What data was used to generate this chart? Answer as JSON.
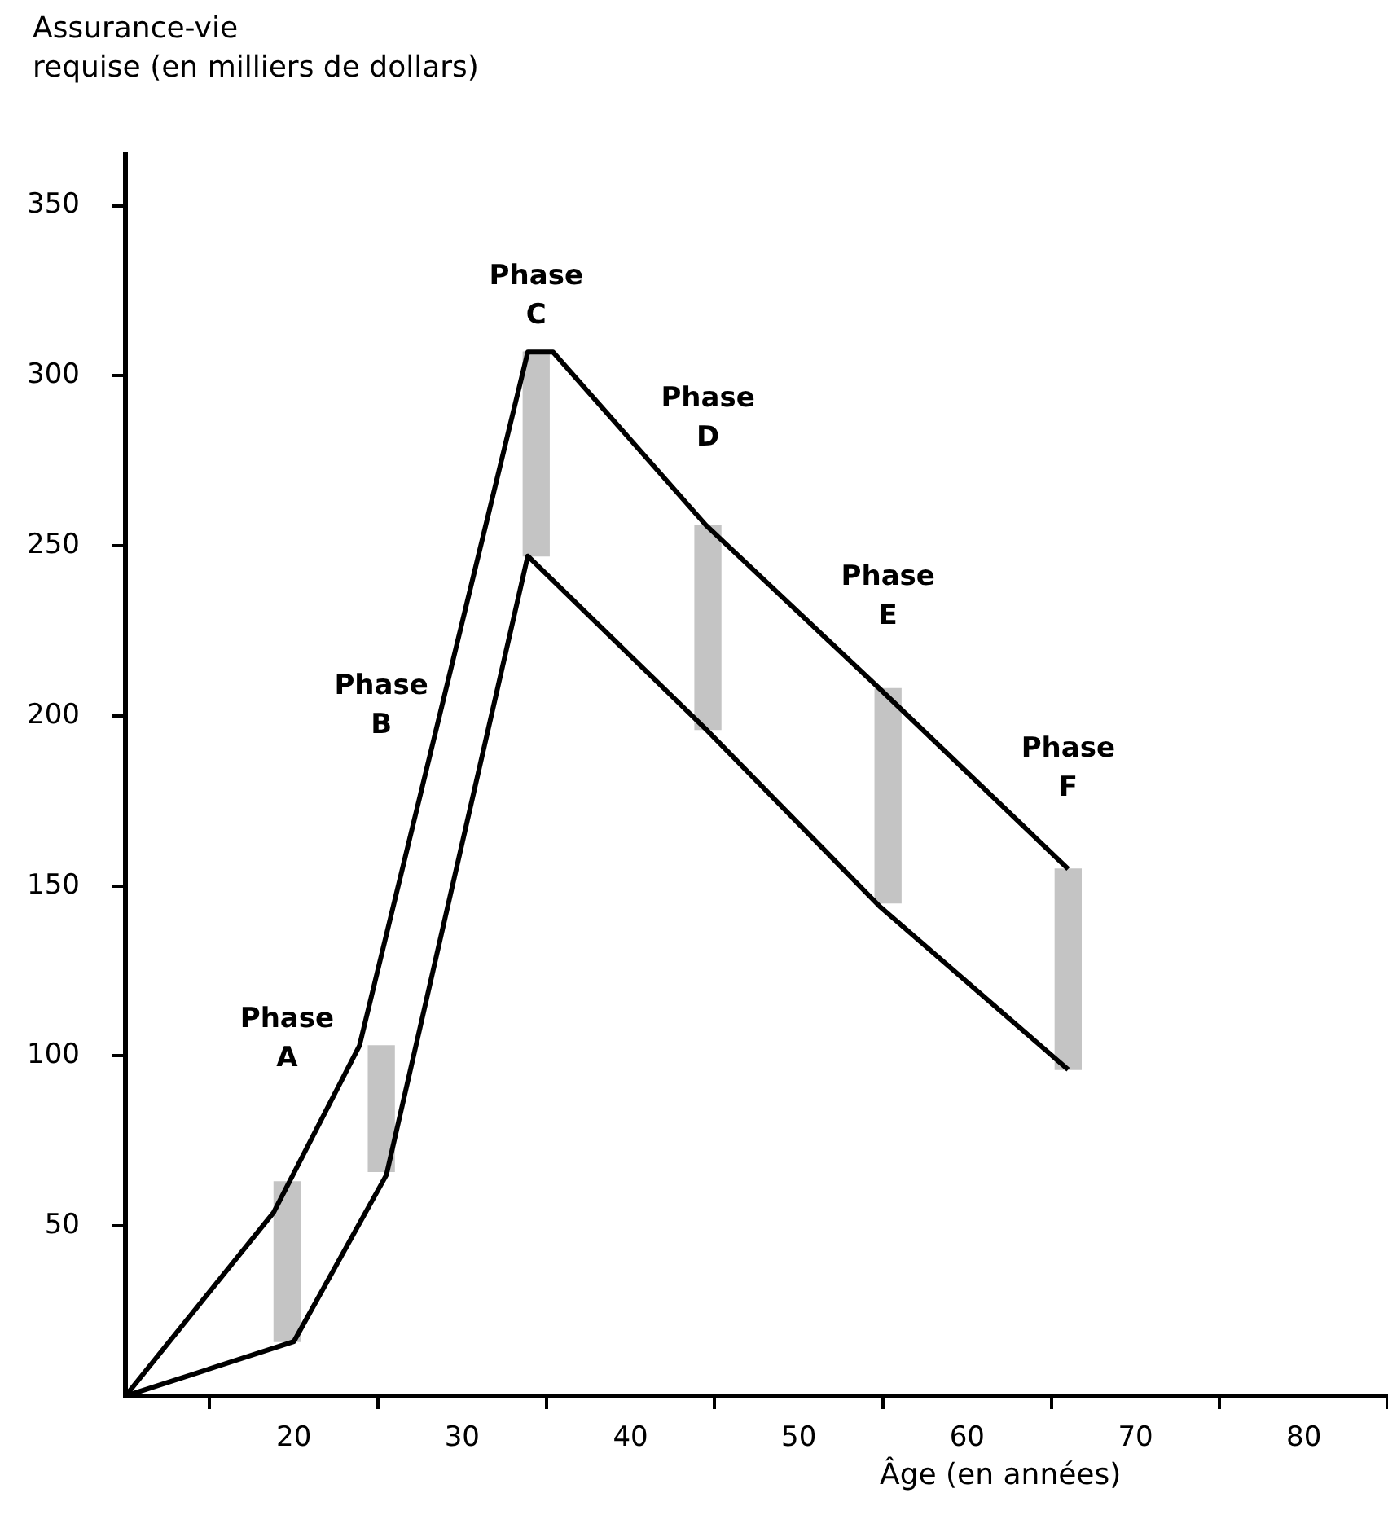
{
  "chart_data": {
    "type": "line",
    "ylabel": "Assurance-vie\nrequise (en milliers de dollars)",
    "xlabel": "Âge (en années)",
    "xlim": [
      10,
      85
    ],
    "xticks": [
      20,
      30,
      40,
      50,
      60,
      70,
      80
    ],
    "ylim": [
      0,
      365
    ],
    "yticks": [
      50,
      100,
      150,
      200,
      250,
      300,
      350
    ],
    "grid": false,
    "legend": false,
    "marker": "none",
    "line_style": "solid",
    "series": [
      {
        "type": "bar",
        "color": "#c4c4c4",
        "x": [
          19.6,
          25.2,
          34.4,
          44.6,
          55.3,
          66
        ],
        "base": [
          16,
          66,
          247,
          196,
          145,
          96
        ],
        "values": [
          47,
          37,
          60,
          60,
          63,
          59
        ]
      },
      {
        "color": "#000000",
        "x": [
          10,
          18.8,
          23.9,
          33.9,
          35.4,
          44.5,
          54.8,
          66
        ],
        "values": [
          0,
          54,
          103,
          307,
          307,
          256,
          208,
          155
        ]
      },
      {
        "color": "#000000",
        "x": [
          10,
          20,
          25.5,
          33.9,
          44.5,
          54.8,
          66
        ],
        "values": [
          0,
          16,
          65,
          247,
          196,
          144,
          96
        ]
      }
    ],
    "annotations": [
      "Phase\nA",
      "Phase\nB",
      "Phase\nC",
      "Phase\nD",
      "Phase\nE",
      "Phase\nF"
    ]
  }
}
